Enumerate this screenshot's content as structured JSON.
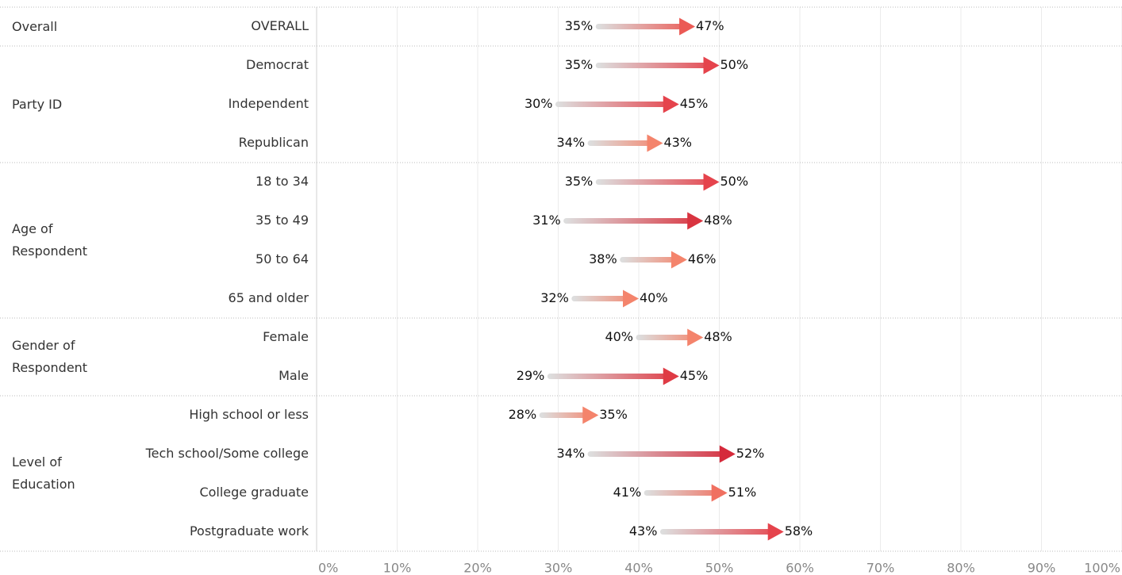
{
  "chart_data": {
    "type": "arrow",
    "xlim": [
      0,
      100
    ],
    "xticks": [
      {
        "value": 0,
        "label": "0%"
      },
      {
        "value": 10,
        "label": "10%"
      },
      {
        "value": 20,
        "label": "20%"
      },
      {
        "value": 30,
        "label": "30%"
      },
      {
        "value": 40,
        "label": "40%"
      },
      {
        "value": 50,
        "label": "50%"
      },
      {
        "value": 60,
        "label": "60%"
      },
      {
        "value": 70,
        "label": "70%"
      },
      {
        "value": 80,
        "label": "80%"
      },
      {
        "value": 90,
        "label": "90%"
      },
      {
        "value": 100,
        "label": "100%"
      }
    ],
    "grid": true,
    "start_color": "#dddddd",
    "groups": [
      {
        "name": "Overall",
        "categories": [
          "OVERALL"
        ],
        "start": [
          35
        ],
        "end": [
          47
        ],
        "start_labels": [
          "35%"
        ],
        "end_labels": [
          "47%"
        ],
        "colors": [
          "#eb5a55"
        ]
      },
      {
        "name": "Party ID",
        "categories": [
          "Democrat",
          "Independent",
          "Republican"
        ],
        "start": [
          35,
          30,
          34
        ],
        "end": [
          50,
          45,
          43
        ],
        "start_labels": [
          "35%",
          "30%",
          "34%"
        ],
        "end_labels": [
          "50%",
          "45%",
          "43%"
        ],
        "colors": [
          "#e5434c",
          "#e5434c",
          "#f4846c"
        ]
      },
      {
        "name": "Age of Respondent",
        "categories": [
          "18 to 34",
          "35 to 49",
          "50 to 64",
          "65 and older"
        ],
        "start": [
          35,
          31,
          38,
          32
        ],
        "end": [
          50,
          48,
          46,
          40
        ],
        "start_labels": [
          "35%",
          "31%",
          "38%",
          "32%"
        ],
        "end_labels": [
          "50%",
          "48%",
          "46%",
          "40%"
        ],
        "colors": [
          "#e5434c",
          "#d93440",
          "#f4846c",
          "#f4846c"
        ]
      },
      {
        "name": "Gender of Respondent",
        "categories": [
          "Female",
          "Male"
        ],
        "start": [
          40,
          29
        ],
        "end": [
          48,
          45
        ],
        "start_labels": [
          "40%",
          "29%"
        ],
        "end_labels": [
          "48%",
          "45%"
        ],
        "colors": [
          "#f4846c",
          "#df3b45"
        ]
      },
      {
        "name": "Level of Education",
        "categories": [
          "High school or less",
          "Tech school/Some college",
          "College graduate",
          "Postgraduate work"
        ],
        "start": [
          28,
          34,
          41,
          43
        ],
        "end": [
          35,
          52,
          51,
          58
        ],
        "start_labels": [
          "28%",
          "34%",
          "41%",
          "43%"
        ],
        "end_labels": [
          "35%",
          "52%",
          "51%",
          "58%"
        ],
        "colors": [
          "#f4846c",
          "#d52a3b",
          "#f07060",
          "#e5434c"
        ]
      }
    ]
  }
}
